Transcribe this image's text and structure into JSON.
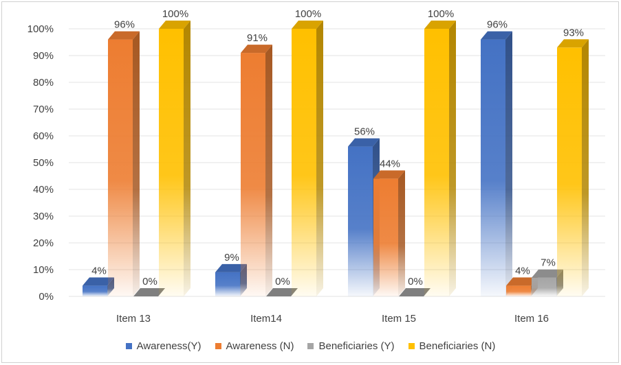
{
  "chart_data": {
    "type": "bar",
    "title": "",
    "xlabel": "",
    "ylabel": "",
    "categories": [
      "Item 13",
      "Item14",
      "Item 15",
      "Item 16"
    ],
    "series": [
      {
        "name": "Awareness(Y)",
        "color": "#4472C4",
        "values": [
          4,
          9,
          56,
          96
        ],
        "labels": [
          "4%",
          "9%",
          "56%",
          "96%"
        ]
      },
      {
        "name": "Awareness (N)",
        "color": "#ED7D31",
        "values": [
          96,
          91,
          44,
          4
        ],
        "labels": [
          "96%",
          "91%",
          "44%",
          "4%"
        ]
      },
      {
        "name": "Beneficiaries (Y)",
        "color": "#A5A5A5",
        "values": [
          0,
          0,
          0,
          7
        ],
        "labels": [
          "0%",
          "0%",
          "0%",
          "7%"
        ]
      },
      {
        "name": "Beneficiaries (N)",
        "color": "#FFC000",
        "values": [
          100,
          100,
          100,
          93
        ],
        "labels": [
          "100%",
          "100%",
          "100%",
          "93%"
        ]
      }
    ],
    "ylim": [
      0,
      100
    ],
    "yticks": [
      "0%",
      "10%",
      "20%",
      "30%",
      "40%",
      "50%",
      "60%",
      "70%",
      "80%",
      "90%",
      "100%"
    ],
    "grid": true,
    "legend_position": "bottom",
    "style": "3d-column-gradient"
  }
}
